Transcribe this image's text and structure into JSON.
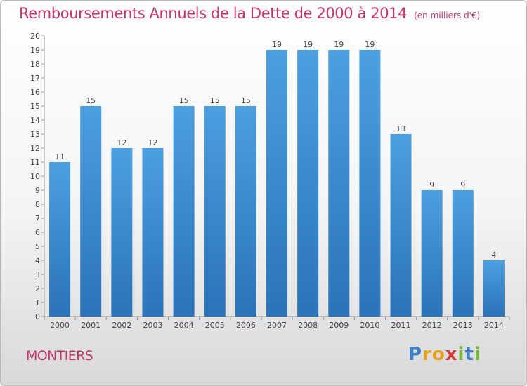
{
  "header": {
    "title": "Remboursements Annuels de la Dette de 2000 à 2014",
    "subtitle": "(en milliers d'€)"
  },
  "footer": {
    "commune": "MONTIERS",
    "logo_letters": [
      "P",
      "r",
      "o",
      "x",
      "i",
      "t",
      "i"
    ],
    "logo_colors": [
      "#3a7fc8",
      "#e8a21e",
      "#e8a21e",
      "#d23a3a",
      "#78b83a",
      "#3a7fc8",
      "#78b83a"
    ]
  },
  "chart_data": {
    "type": "bar",
    "title": "Remboursements Annuels de la Dette de 2000 à 2014",
    "subtitle": "(en milliers d'€)",
    "categories": [
      "2000",
      "2001",
      "2002",
      "2003",
      "2004",
      "2005",
      "2006",
      "2007",
      "2008",
      "2009",
      "2010",
      "2011",
      "2012",
      "2013",
      "2014"
    ],
    "values": [
      11,
      15,
      12,
      12,
      15,
      15,
      15,
      19,
      19,
      19,
      19,
      13,
      9,
      9,
      4
    ],
    "ylim": [
      0,
      20
    ],
    "yticks": [
      0,
      1,
      2,
      3,
      4,
      5,
      6,
      7,
      8,
      9,
      10,
      11,
      12,
      13,
      14,
      15,
      16,
      17,
      18,
      19,
      20
    ],
    "grid": false,
    "data_labels": true,
    "bar_color": "#4d9fe0",
    "bar_color_dark": "#2a73b8"
  }
}
